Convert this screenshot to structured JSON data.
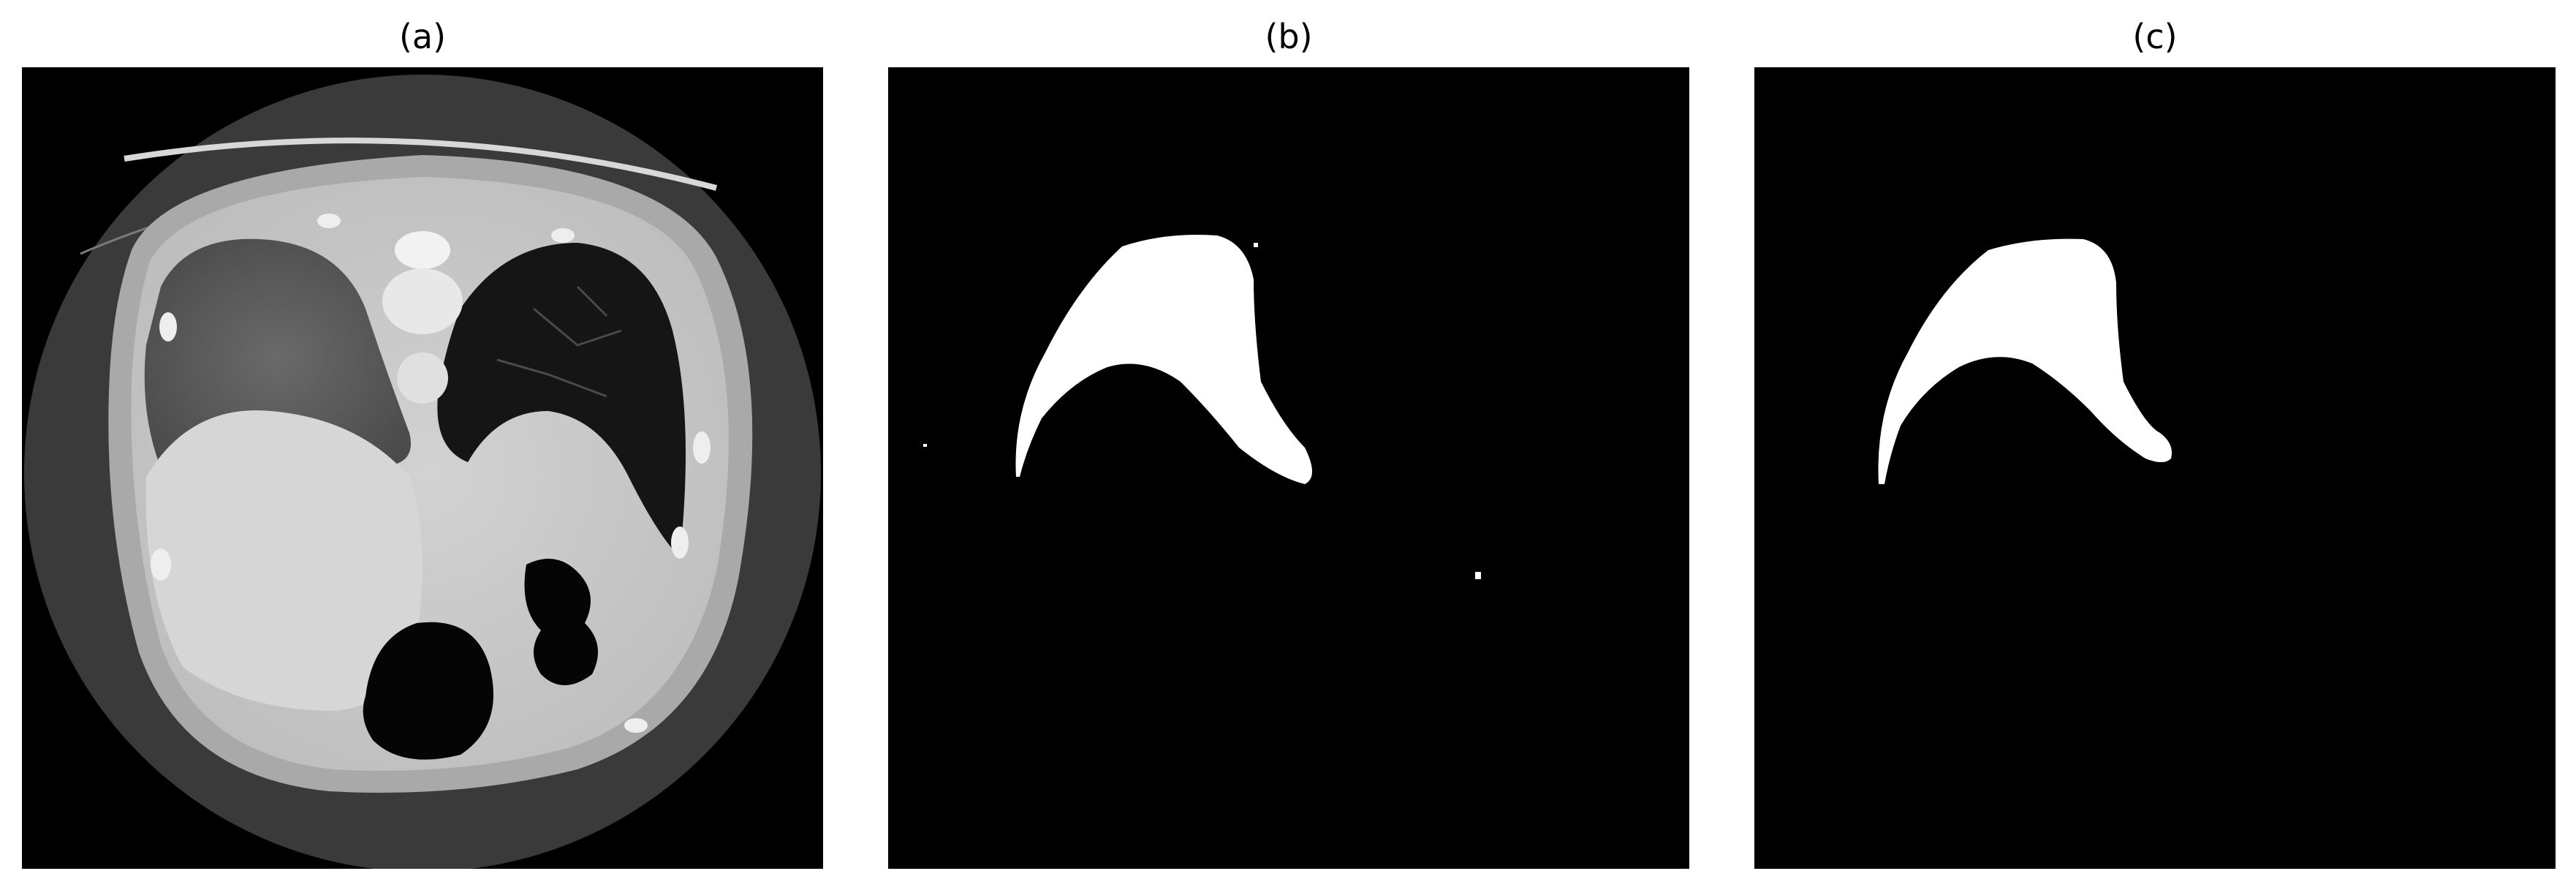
{
  "figure": {
    "panels": [
      {
        "label": "(a)",
        "content": "ct-scan-image"
      },
      {
        "label": "(b)",
        "content": "raw-segmentation-mask"
      },
      {
        "label": "(c)",
        "content": "refined-segmentation-mask"
      }
    ]
  },
  "colors": {
    "background": "#ffffff",
    "mask_background": "#000000",
    "mask_foreground": "#ffffff",
    "ct_outer": "#3b3b3b",
    "ct_body": "#c9c9c9",
    "ct_lung": "#141414",
    "ct_bone": "#f2f2f2",
    "ct_gas": "#050505"
  }
}
